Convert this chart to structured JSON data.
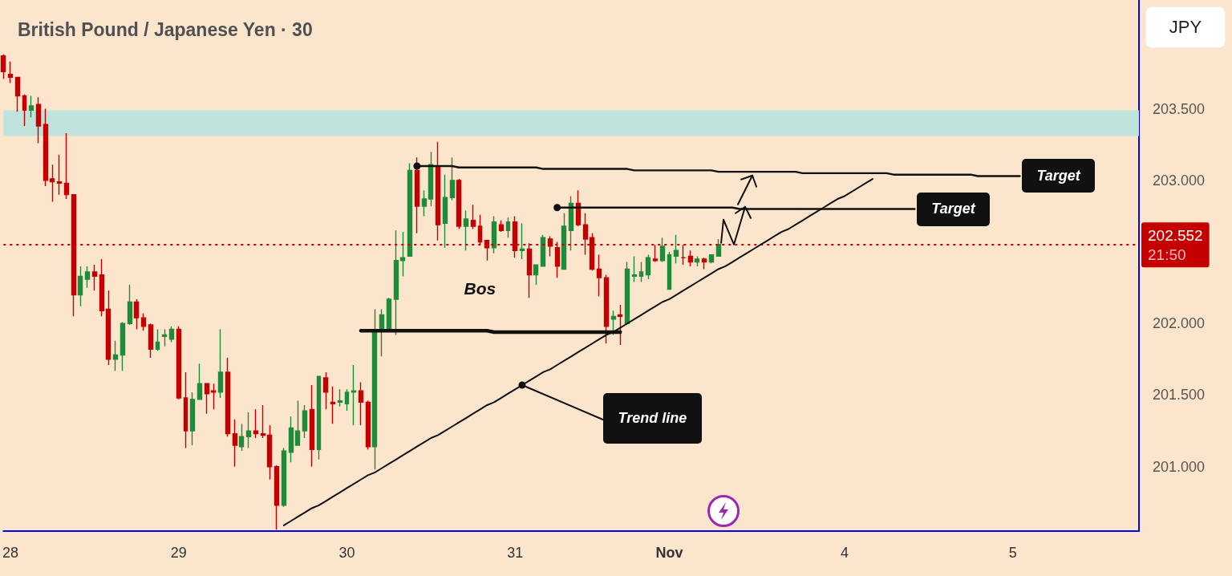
{
  "chart_data": {
    "type": "candlestick",
    "title": "British Pound / Japanese Yen · 30",
    "ylabel": "JPY",
    "categories": [
      null,
      "28",
      null,
      null,
      null,
      null,
      null,
      null,
      null,
      null,
      null,
      null,
      null,
      null,
      null,
      null,
      null,
      null,
      null,
      null,
      null,
      null,
      null,
      null,
      null,
      "29",
      null,
      null,
      null,
      null,
      null,
      null,
      null,
      null,
      null,
      null,
      null,
      null,
      null,
      null,
      null,
      null,
      null,
      null,
      null,
      null,
      null,
      null,
      null,
      "30",
      null,
      null,
      null,
      null,
      null,
      null,
      null,
      null,
      null,
      null,
      null,
      null,
      null,
      null,
      null,
      null,
      null,
      null,
      null,
      null,
      null,
      null,
      null,
      "31",
      null,
      null,
      null,
      null,
      null,
      null,
      null,
      null,
      null,
      null,
      null,
      null,
      null,
      null,
      null,
      null,
      null,
      null,
      null,
      null,
      null,
      "Nov",
      null,
      null,
      null,
      null,
      null,
      null,
      null,
      null,
      null,
      null,
      null,
      null,
      null,
      null,
      null,
      null,
      null,
      null,
      null,
      null,
      null,
      null,
      null,
      null,
      "4",
      null,
      null,
      null,
      null,
      null,
      null,
      null,
      null,
      null,
      null,
      null,
      null,
      null,
      null,
      null,
      null,
      null,
      null,
      null,
      null,
      null,
      null,
      null,
      "5",
      null,
      null,
      null,
      null,
      null,
      null,
      null,
      null,
      null,
      null,
      null,
      null,
      null,
      null,
      null,
      null,
      null,
      null
    ],
    "ohlc": [
      [
        203.87,
        203.88,
        203.71,
        203.76
      ],
      [
        203.74,
        203.83,
        203.68,
        203.72
      ],
      [
        203.72,
        203.72,
        203.48,
        203.59
      ],
      [
        203.59,
        203.6,
        203.38,
        203.49
      ],
      [
        203.49,
        203.59,
        203.44,
        203.52
      ],
      [
        203.53,
        203.58,
        203.26,
        203.38
      ],
      [
        203.39,
        203.5,
        202.96,
        203.0
      ],
      [
        203.01,
        203.11,
        202.85,
        202.99
      ],
      [
        202.99,
        203.18,
        202.9,
        202.98
      ],
      [
        202.98,
        203.33,
        202.87,
        202.9
      ],
      [
        202.9,
        202.9,
        202.05,
        202.2
      ],
      [
        202.2,
        202.4,
        202.12,
        202.33
      ],
      [
        202.31,
        202.4,
        202.25,
        202.36
      ],
      [
        202.36,
        202.41,
        202.23,
        202.33
      ],
      [
        202.34,
        202.45,
        202.05,
        202.09
      ],
      [
        202.1,
        202.23,
        201.71,
        201.75
      ],
      [
        201.75,
        201.88,
        201.67,
        201.78
      ],
      [
        201.78,
        202.01,
        201.67,
        202.0
      ],
      [
        202.0,
        202.27,
        201.99,
        202.15
      ],
      [
        202.15,
        202.17,
        201.96,
        202.04
      ],
      [
        202.04,
        202.07,
        201.95,
        201.98
      ],
      [
        201.99,
        202.0,
        201.76,
        201.82
      ],
      [
        201.82,
        201.96,
        201.81,
        201.87
      ],
      [
        201.91,
        201.96,
        201.84,
        201.92
      ],
      [
        201.89,
        201.98,
        201.87,
        201.96
      ],
      [
        201.96,
        201.98,
        201.47,
        201.48
      ],
      [
        201.48,
        201.66,
        201.13,
        201.25
      ],
      [
        201.25,
        201.52,
        201.15,
        201.47
      ],
      [
        201.47,
        201.72,
        201.47,
        201.58
      ],
      [
        201.58,
        201.58,
        201.37,
        201.51
      ],
      [
        201.53,
        201.58,
        201.4,
        201.52
      ],
      [
        201.52,
        201.96,
        201.48,
        201.66
      ],
      [
        201.66,
        201.76,
        201.21,
        201.23
      ],
      [
        201.23,
        201.33,
        201.0,
        201.15
      ],
      [
        201.14,
        201.3,
        201.11,
        201.21
      ],
      [
        201.21,
        201.38,
        201.13,
        201.25
      ],
      [
        201.25,
        201.4,
        201.2,
        201.23
      ],
      [
        201.23,
        201.43,
        201.2,
        201.22
      ],
      [
        201.22,
        201.29,
        200.91,
        201.0
      ],
      [
        201.0,
        201.01,
        200.56,
        200.73
      ],
      [
        200.73,
        201.13,
        200.72,
        201.11
      ],
      [
        201.1,
        201.35,
        201.03,
        201.27
      ],
      [
        201.15,
        201.46,
        201.15,
        201.25
      ],
      [
        201.25,
        201.43,
        201.2,
        201.39
      ],
      [
        201.4,
        201.57,
        201.0,
        201.12
      ],
      [
        201.12,
        201.63,
        201.05,
        201.63
      ],
      [
        201.62,
        201.66,
        201.4,
        201.52
      ],
      [
        201.45,
        201.56,
        201.3,
        201.44
      ],
      [
        201.45,
        201.54,
        201.42,
        201.46
      ],
      [
        201.44,
        201.54,
        201.39,
        201.52
      ],
      [
        201.52,
        201.71,
        201.29,
        201.53
      ],
      [
        201.53,
        201.59,
        201.29,
        201.45
      ],
      [
        201.45,
        201.46,
        201.12,
        201.14
      ],
      [
        201.14,
        202.1,
        200.98,
        201.95
      ],
      [
        201.95,
        202.1,
        201.77,
        202.06
      ],
      [
        201.95,
        202.18,
        201.94,
        202.17
      ],
      [
        202.17,
        202.65,
        201.92,
        202.44
      ],
      [
        202.44,
        202.64,
        202.33,
        202.46
      ],
      [
        202.47,
        203.12,
        202.47,
        203.07
      ],
      [
        203.07,
        203.16,
        202.63,
        202.82
      ],
      [
        202.82,
        202.93,
        202.75,
        202.87
      ],
      [
        202.87,
        203.2,
        202.82,
        203.11
      ],
      [
        203.1,
        203.27,
        202.58,
        202.69
      ],
      [
        202.7,
        203.04,
        202.53,
        202.88
      ],
      [
        202.88,
        203.16,
        202.86,
        203.0
      ],
      [
        203.0,
        203.01,
        202.66,
        202.68
      ],
      [
        202.68,
        202.79,
        202.51,
        202.73
      ],
      [
        202.72,
        202.83,
        202.66,
        202.68
      ],
      [
        202.68,
        202.76,
        202.55,
        202.57
      ],
      [
        202.58,
        202.58,
        202.44,
        202.53
      ],
      [
        202.53,
        202.75,
        202.49,
        202.71
      ],
      [
        202.69,
        202.72,
        202.64,
        202.65
      ],
      [
        202.65,
        202.74,
        202.6,
        202.71
      ],
      [
        202.71,
        202.75,
        202.46,
        202.51
      ],
      [
        202.51,
        202.7,
        202.45,
        202.52
      ],
      [
        202.52,
        202.56,
        202.18,
        202.34
      ],
      [
        202.34,
        202.41,
        202.27,
        202.41
      ],
      [
        202.4,
        202.62,
        202.4,
        202.6
      ],
      [
        202.59,
        202.61,
        202.47,
        202.54
      ],
      [
        202.53,
        202.57,
        202.32,
        202.4
      ],
      [
        202.38,
        202.77,
        202.38,
        202.68
      ],
      [
        202.65,
        202.89,
        202.51,
        202.84
      ],
      [
        202.84,
        202.93,
        202.68,
        202.69
      ],
      [
        202.69,
        202.77,
        202.48,
        202.59
      ],
      [
        202.6,
        202.63,
        202.37,
        202.38
      ],
      [
        202.38,
        202.48,
        202.19,
        202.32
      ],
      [
        202.32,
        202.34,
        201.86,
        201.98
      ],
      [
        202.03,
        202.09,
        201.92,
        202.05
      ],
      [
        202.06,
        202.13,
        201.85,
        202.05
      ],
      [
        202.0,
        202.43,
        201.99,
        202.38
      ],
      [
        202.33,
        202.47,
        202.29,
        202.34
      ],
      [
        202.33,
        202.43,
        202.29,
        202.36
      ],
      [
        202.34,
        202.48,
        202.31,
        202.46
      ],
      [
        202.45,
        202.55,
        202.43,
        202.44
      ],
      [
        202.44,
        202.6,
        202.43,
        202.54
      ],
      [
        202.24,
        202.5,
        202.24,
        202.48
      ],
      [
        202.47,
        202.62,
        202.42,
        202.51
      ],
      [
        202.46,
        202.55,
        202.41,
        202.46
      ],
      [
        202.47,
        202.51,
        202.4,
        202.43
      ],
      [
        202.43,
        202.47,
        202.4,
        202.45
      ],
      [
        202.45,
        202.46,
        202.38,
        202.43
      ],
      [
        202.43,
        202.48,
        202.42,
        202.48
      ],
      [
        202.47,
        202.59,
        202.47,
        202.552
      ],
      null,
      null,
      null,
      null,
      null,
      null,
      null,
      null,
      null,
      null,
      null,
      null,
      null,
      null,
      null,
      null,
      null,
      null,
      null,
      null,
      null,
      null,
      null,
      null,
      null,
      null,
      null,
      null,
      null,
      null,
      null,
      null,
      null,
      null,
      null,
      null,
      null,
      null,
      null,
      null,
      null,
      null,
      null,
      null,
      null,
      null,
      null,
      null,
      null,
      null,
      null,
      null,
      null,
      null,
      null,
      null,
      null,
      null,
      null,
      null
    ],
    "series": [
      {
        "type": "line",
        "name": "Trend line",
        "color": "#111111",
        "values": [
          null,
          null,
          null,
          null,
          null,
          null,
          null,
          null,
          null,
          null,
          null,
          null,
          null,
          null,
          null,
          null,
          null,
          null,
          null,
          null,
          null,
          null,
          null,
          null,
          null,
          null,
          null,
          null,
          null,
          null,
          null,
          null,
          null,
          null,
          null,
          null,
          null,
          null,
          null,
          null,
          200.59,
          200.62,
          200.65,
          200.68,
          200.71,
          200.73,
          200.76,
          200.79,
          200.82,
          200.85,
          200.88,
          200.91,
          200.94,
          200.96,
          200.99,
          201.02,
          201.05,
          201.08,
          201.11,
          201.14,
          201.17,
          201.2,
          201.22,
          201.25,
          201.28,
          201.31,
          201.34,
          201.37,
          201.4,
          201.43,
          201.45,
          201.48,
          201.51,
          201.54,
          201.57,
          201.6,
          201.63,
          201.66,
          201.68,
          201.71,
          201.74,
          201.77,
          201.8,
          201.83,
          201.86,
          201.89,
          201.92,
          201.94,
          201.97,
          202.0,
          202.03,
          202.06,
          202.09,
          202.12,
          202.15,
          202.17,
          202.2,
          202.23,
          202.26,
          202.29,
          202.32,
          202.35,
          202.38,
          202.4,
          202.43,
          202.46,
          202.49,
          202.52,
          202.55,
          202.58,
          202.61,
          202.64,
          202.66,
          202.69,
          202.72,
          202.75,
          202.78,
          202.81,
          202.84,
          202.87,
          202.89,
          202.92,
          202.95,
          202.98,
          203.01,
          null,
          null,
          null,
          null,
          null,
          null,
          null,
          null,
          null,
          null,
          null,
          null,
          null,
          null,
          null,
          null,
          null,
          null,
          null,
          null,
          null,
          null,
          null,
          null,
          null,
          null,
          null,
          null,
          null,
          null,
          null,
          null,
          null,
          null,
          null,
          null,
          null,
          null
        ]
      },
      {
        "type": "line",
        "name": "Target",
        "color": "#111111",
        "values": [
          null,
          null,
          null,
          null,
          null,
          null,
          null,
          null,
          null,
          null,
          null,
          null,
          null,
          null,
          null,
          null,
          null,
          null,
          null,
          null,
          null,
          null,
          null,
          null,
          null,
          null,
          null,
          null,
          null,
          null,
          null,
          null,
          null,
          null,
          null,
          null,
          null,
          null,
          null,
          null,
          null,
          null,
          null,
          null,
          null,
          null,
          null,
          null,
          null,
          null,
          null,
          null,
          null,
          null,
          null,
          null,
          null,
          null,
          null,
          203.1,
          203.1,
          203.1,
          203.1,
          203.1,
          203.1,
          203.09,
          203.09,
          203.09,
          203.09,
          203.09,
          203.09,
          203.09,
          203.09,
          203.09,
          203.09,
          203.09,
          203.09,
          203.08,
          203.08,
          203.08,
          203.08,
          203.08,
          203.08,
          203.08,
          203.08,
          203.08,
          203.08,
          203.08,
          203.08,
          203.08,
          203.07,
          203.07,
          203.07,
          203.07,
          203.07,
          203.07,
          203.07,
          203.07,
          203.07,
          203.07,
          203.07,
          203.07,
          203.06,
          203.06,
          203.06,
          203.06,
          203.06,
          203.06,
          203.06,
          203.06,
          203.06,
          203.06,
          203.06,
          203.06,
          203.05,
          203.05,
          203.05,
          203.05,
          203.05,
          203.05,
          203.05,
          203.05,
          203.05,
          203.05,
          203.05,
          203.05,
          203.05,
          203.04,
          203.04,
          203.04,
          203.04,
          203.04,
          203.04,
          203.04,
          203.04,
          203.04,
          203.04,
          203.04,
          203.04,
          203.03,
          203.03,
          203.03,
          203.03,
          203.03,
          203.03,
          203.03,
          null,
          null,
          null,
          null,
          null,
          null,
          null,
          null,
          null,
          null,
          null,
          null,
          null,
          null,
          null,
          null,
          null
        ]
      },
      {
        "type": "line",
        "name": "Target",
        "color": "#111111",
        "values": [
          null,
          null,
          null,
          null,
          null,
          null,
          null,
          null,
          null,
          null,
          null,
          null,
          null,
          null,
          null,
          null,
          null,
          null,
          null,
          null,
          null,
          null,
          null,
          null,
          null,
          null,
          null,
          null,
          null,
          null,
          null,
          null,
          null,
          null,
          null,
          null,
          null,
          null,
          null,
          null,
          null,
          null,
          null,
          null,
          null,
          null,
          null,
          null,
          null,
          null,
          null,
          null,
          null,
          null,
          null,
          null,
          null,
          null,
          null,
          null,
          null,
          null,
          null,
          null,
          null,
          null,
          null,
          null,
          null,
          null,
          null,
          null,
          null,
          null,
          null,
          null,
          null,
          null,
          null,
          202.81,
          202.81,
          202.81,
          202.81,
          202.81,
          202.81,
          202.81,
          202.81,
          202.81,
          202.81,
          202.81,
          202.81,
          202.81,
          202.81,
          202.81,
          202.81,
          202.81,
          202.81,
          202.81,
          202.81,
          202.81,
          202.81,
          202.81,
          202.81,
          202.81,
          202.81,
          202.8,
          202.8,
          202.8,
          202.8,
          202.8,
          202.8,
          202.8,
          202.8,
          202.8,
          202.8,
          202.8,
          202.8,
          202.8,
          202.8,
          202.8,
          202.8,
          202.8,
          202.8,
          202.8,
          202.8,
          202.8,
          202.8,
          202.8,
          202.8,
          202.8,
          202.8,
          null,
          null,
          null,
          null,
          null,
          null,
          null,
          null,
          null,
          null,
          null,
          null,
          null,
          null,
          null,
          null,
          null,
          null,
          null,
          null,
          null,
          null,
          null,
          null,
          null,
          null,
          null,
          null,
          null,
          null,
          null,
          null
        ]
      },
      {
        "type": "line",
        "name": "Bos",
        "color": "#111111",
        "values": [
          null,
          null,
          null,
          null,
          null,
          null,
          null,
          null,
          null,
          null,
          null,
          null,
          null,
          null,
          null,
          null,
          null,
          null,
          null,
          null,
          null,
          null,
          null,
          null,
          null,
          null,
          null,
          null,
          null,
          null,
          null,
          null,
          null,
          null,
          null,
          null,
          null,
          null,
          null,
          null,
          null,
          null,
          null,
          null,
          null,
          null,
          null,
          null,
          null,
          null,
          null,
          201.95,
          201.95,
          201.95,
          201.95,
          201.95,
          201.95,
          201.95,
          201.95,
          201.95,
          201.95,
          201.95,
          201.95,
          201.95,
          201.95,
          201.95,
          201.95,
          201.95,
          201.95,
          201.95,
          201.94,
          201.94,
          201.94,
          201.94,
          201.94,
          201.94,
          201.94,
          201.94,
          201.94,
          201.94,
          201.94,
          201.94,
          201.94,
          201.94,
          201.94,
          201.94,
          201.94,
          201.94,
          201.94,
          null,
          null,
          null,
          null,
          null,
          null,
          null,
          null,
          null,
          null,
          null,
          null,
          null,
          null,
          null,
          null,
          null,
          null,
          null,
          null,
          null,
          null,
          null,
          null,
          null,
          null,
          null,
          null,
          null,
          null,
          null,
          null,
          null,
          null,
          null,
          null,
          null,
          null,
          null,
          null,
          null,
          null,
          null,
          null,
          null,
          null,
          null,
          null,
          null,
          null,
          null,
          null,
          null,
          null,
          null,
          null,
          null,
          null,
          null,
          null,
          null,
          null,
          null,
          null,
          null,
          null,
          null,
          null,
          null,
          null,
          null,
          null,
          null,
          null
        ]
      }
    ],
    "ref_lines": [
      {
        "axis": "y",
        "value": 202.552,
        "label": "202.552\n21:50",
        "color": "#c40000",
        "line_style": "dotted"
      }
    ],
    "bands": [
      {
        "axis": "y",
        "from": 203.31,
        "to": 203.49,
        "color": "#c0e3dc"
      }
    ],
    "ylim": [
      200.55,
      204.26
    ],
    "yticks": [
      {
        "value": 201,
        "label": "201.000"
      },
      {
        "value": 201.5,
        "label": "201.500"
      },
      {
        "value": 202,
        "label": "202.000"
      },
      {
        "value": 203,
        "label": "203.000"
      },
      {
        "value": 203.5,
        "label": "203.500"
      }
    ]
  }
}
